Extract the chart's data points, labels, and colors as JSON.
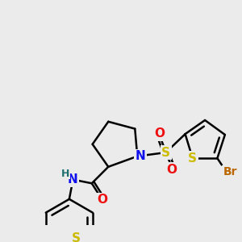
{
  "bg_color": "#ebebeb",
  "bond_color": "#000000",
  "bond_width": 1.8,
  "fig_size": [
    3.0,
    3.0
  ],
  "dpi": 100,
  "atom_colors": {
    "N": "#1010ee",
    "O": "#ee1010",
    "S": "#ccbb00",
    "Br": "#bb6600",
    "H": "#207070"
  }
}
